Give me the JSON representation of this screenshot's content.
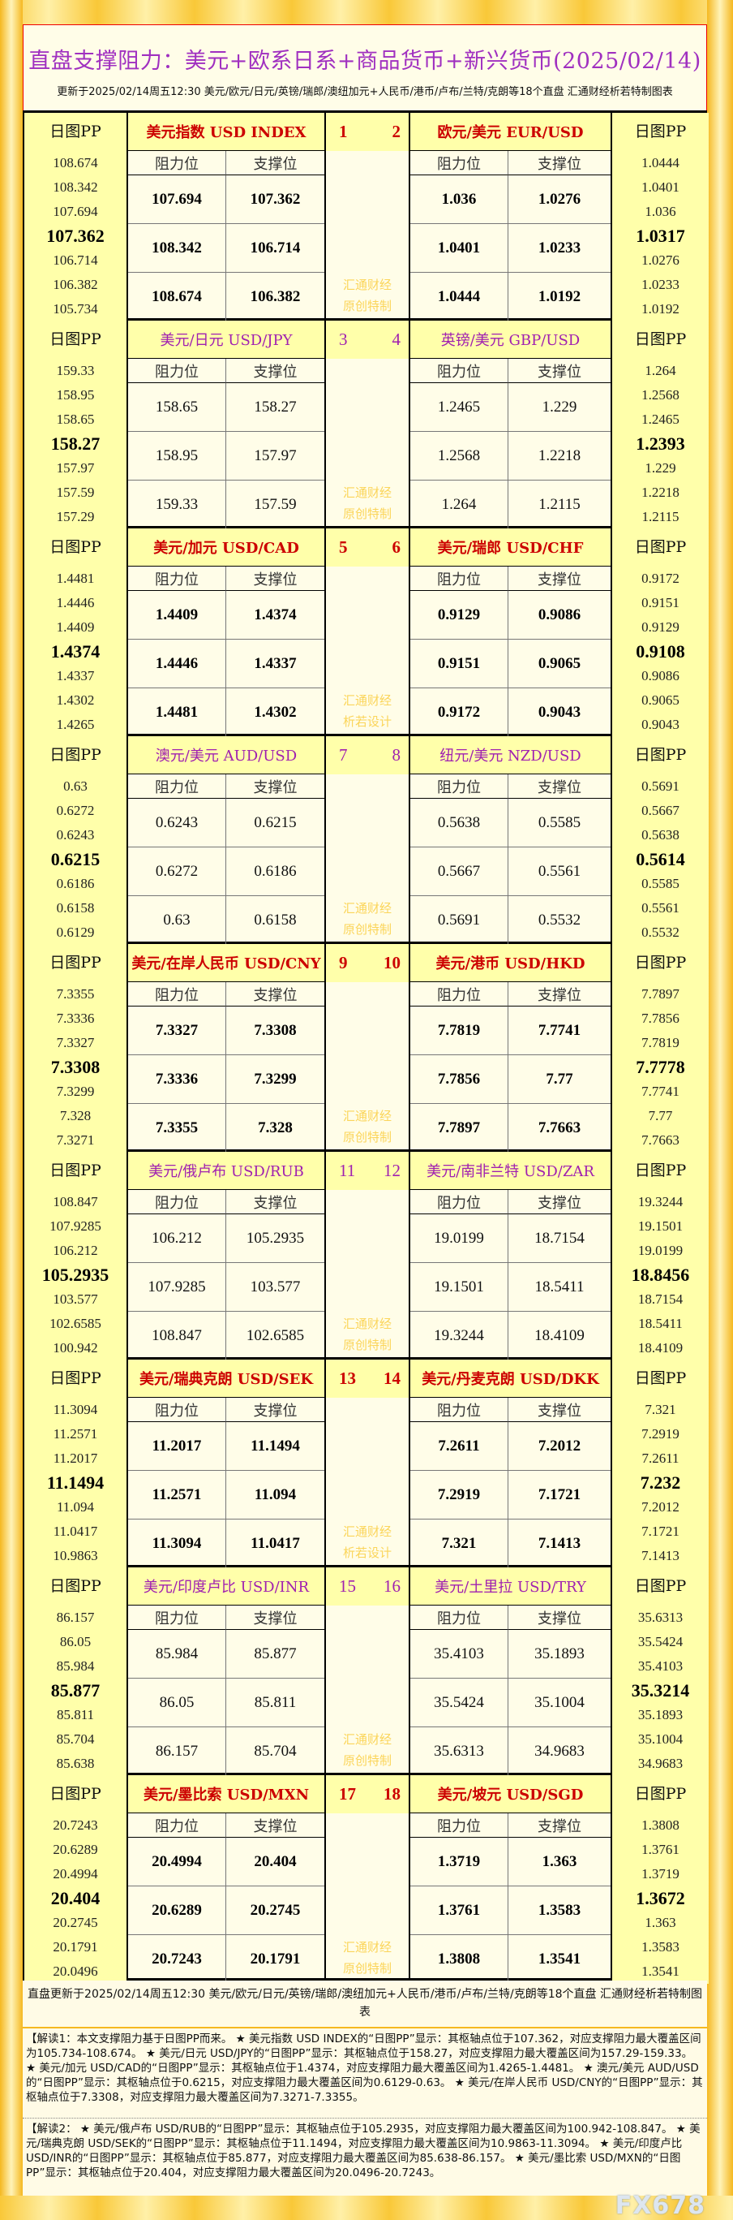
{
  "title": "直盘支撑阻力：美元+欧系日系+商品货币+新兴货币(2025/02/14)",
  "subtitle": "更新于2025/02/14周五12:30 美元/欧元/日元/英镑/瑞郎/澳纽加元+人民币/港币/卢布/兰特/克朗等18个直盘 汇通财经析若特制图表",
  "labels": {
    "pp_header": "日图PP",
    "resistance": "阻力位",
    "support": "支撑位"
  },
  "colors": {
    "red": "#cc0000",
    "purple": "#a020b0",
    "pp_bg": "#ffffaa",
    "cell_bg": "#fffde8",
    "watermark": "#fbd55a",
    "title": "#a030c0"
  },
  "blocks": [
    {
      "theme": "red",
      "nums": [
        "1",
        "2"
      ],
      "watermark": [
        "汇通财经",
        "原创特制"
      ],
      "left": {
        "name": "美元指数 USD INDEX",
        "pp": [
          "108.674",
          "108.342",
          "107.694",
          "107.362",
          "106.714",
          "106.382",
          "105.734"
        ],
        "res": [
          "107.694",
          "108.342",
          "108.674"
        ],
        "sup": [
          "107.362",
          "106.714",
          "106.382"
        ]
      },
      "right": {
        "name": "欧元/美元 EUR/USD",
        "pp": [
          "1.0444",
          "1.0401",
          "1.036",
          "1.0317",
          "1.0276",
          "1.0233",
          "1.0192"
        ],
        "res": [
          "1.036",
          "1.0401",
          "1.0444"
        ],
        "sup": [
          "1.0276",
          "1.0233",
          "1.0192"
        ]
      }
    },
    {
      "theme": "purple",
      "nums": [
        "3",
        "4"
      ],
      "watermark": [
        "汇通财经",
        "原创特制"
      ],
      "left": {
        "name": "美元/日元 USD/JPY",
        "pp": [
          "159.33",
          "158.95",
          "158.65",
          "158.27",
          "157.97",
          "157.59",
          "157.29"
        ],
        "res": [
          "158.65",
          "158.95",
          "159.33"
        ],
        "sup": [
          "158.27",
          "157.97",
          "157.59"
        ]
      },
      "right": {
        "name": "英镑/美元 GBP/USD",
        "pp": [
          "1.264",
          "1.2568",
          "1.2465",
          "1.2393",
          "1.229",
          "1.2218",
          "1.2115"
        ],
        "res": [
          "1.2465",
          "1.2568",
          "1.264"
        ],
        "sup": [
          "1.229",
          "1.2218",
          "1.2115"
        ]
      }
    },
    {
      "theme": "red",
      "nums": [
        "5",
        "6"
      ],
      "watermark": [
        "汇通财经",
        "析若设计"
      ],
      "left": {
        "name": "美元/加元 USD/CAD",
        "pp": [
          "1.4481",
          "1.4446",
          "1.4409",
          "1.4374",
          "1.4337",
          "1.4302",
          "1.4265"
        ],
        "res": [
          "1.4409",
          "1.4446",
          "1.4481"
        ],
        "sup": [
          "1.4374",
          "1.4337",
          "1.4302"
        ]
      },
      "right": {
        "name": "美元/瑞郎 USD/CHF",
        "pp": [
          "0.9172",
          "0.9151",
          "0.9129",
          "0.9108",
          "0.9086",
          "0.9065",
          "0.9043"
        ],
        "res": [
          "0.9129",
          "0.9151",
          "0.9172"
        ],
        "sup": [
          "0.9086",
          "0.9065",
          "0.9043"
        ]
      }
    },
    {
      "theme": "purple",
      "nums": [
        "7",
        "8"
      ],
      "watermark": [
        "汇通财经",
        "原创特制"
      ],
      "left": {
        "name": "澳元/美元 AUD/USD",
        "pp": [
          "0.63",
          "0.6272",
          "0.6243",
          "0.6215",
          "0.6186",
          "0.6158",
          "0.6129"
        ],
        "res": [
          "0.6243",
          "0.6272",
          "0.63"
        ],
        "sup": [
          "0.6215",
          "0.6186",
          "0.6158"
        ]
      },
      "right": {
        "name": "纽元/美元 NZD/USD",
        "pp": [
          "0.5691",
          "0.5667",
          "0.5638",
          "0.5614",
          "0.5585",
          "0.5561",
          "0.5532"
        ],
        "res": [
          "0.5638",
          "0.5667",
          "0.5691"
        ],
        "sup": [
          "0.5585",
          "0.5561",
          "0.5532"
        ]
      }
    },
    {
      "theme": "red",
      "nums": [
        "9",
        "10"
      ],
      "watermark": [
        "汇通财经",
        "原创特制"
      ],
      "left": {
        "name": "美元/在岸人民币 USD/CNY",
        "pp": [
          "7.3355",
          "7.3336",
          "7.3327",
          "7.3308",
          "7.3299",
          "7.328",
          "7.3271"
        ],
        "res": [
          "7.3327",
          "7.3336",
          "7.3355"
        ],
        "sup": [
          "7.3308",
          "7.3299",
          "7.328"
        ]
      },
      "right": {
        "name": "美元/港币 USD/HKD",
        "pp": [
          "7.7897",
          "7.7856",
          "7.7819",
          "7.7778",
          "7.7741",
          "7.77",
          "7.7663"
        ],
        "res": [
          "7.7819",
          "7.7856",
          "7.7897"
        ],
        "sup": [
          "7.7741",
          "7.77",
          "7.7663"
        ]
      }
    },
    {
      "theme": "purple",
      "nums": [
        "11",
        "12"
      ],
      "watermark": [
        "汇通财经",
        "原创特制"
      ],
      "left": {
        "name": "美元/俄卢布 USD/RUB",
        "pp": [
          "108.847",
          "107.9285",
          "106.212",
          "105.2935",
          "103.577",
          "102.6585",
          "100.942"
        ],
        "res": [
          "106.212",
          "107.9285",
          "108.847"
        ],
        "sup": [
          "105.2935",
          "103.577",
          "102.6585"
        ]
      },
      "right": {
        "name": "美元/南非兰特 USD/ZAR",
        "pp": [
          "19.3244",
          "19.1501",
          "19.0199",
          "18.8456",
          "18.7154",
          "18.5411",
          "18.4109"
        ],
        "res": [
          "19.0199",
          "19.1501",
          "19.3244"
        ],
        "sup": [
          "18.7154",
          "18.5411",
          "18.4109"
        ]
      }
    },
    {
      "theme": "red",
      "nums": [
        "13",
        "14"
      ],
      "watermark": [
        "汇通财经",
        "析若设计"
      ],
      "left": {
        "name": "美元/瑞典克朗 USD/SEK",
        "pp": [
          "11.3094",
          "11.2571",
          "11.2017",
          "11.1494",
          "11.094",
          "11.0417",
          "10.9863"
        ],
        "res": [
          "11.2017",
          "11.2571",
          "11.3094"
        ],
        "sup": [
          "11.1494",
          "11.094",
          "11.0417"
        ]
      },
      "right": {
        "name": "美元/丹麦克朗 USD/DKK",
        "pp": [
          "7.321",
          "7.2919",
          "7.2611",
          "7.232",
          "7.2012",
          "7.1721",
          "7.1413"
        ],
        "res": [
          "7.2611",
          "7.2919",
          "7.321"
        ],
        "sup": [
          "7.2012",
          "7.1721",
          "7.1413"
        ]
      }
    },
    {
      "theme": "purple",
      "nums": [
        "15",
        "16"
      ],
      "watermark": [
        "汇通财经",
        "原创特制"
      ],
      "left": {
        "name": "美元/印度卢比 USD/INR",
        "pp": [
          "86.157",
          "86.05",
          "85.984",
          "85.877",
          "85.811",
          "85.704",
          "85.638"
        ],
        "res": [
          "85.984",
          "86.05",
          "86.157"
        ],
        "sup": [
          "85.877",
          "85.811",
          "85.704"
        ]
      },
      "right": {
        "name": "美元/土里拉 USD/TRY",
        "pp": [
          "35.6313",
          "35.5424",
          "35.4103",
          "35.3214",
          "35.1893",
          "35.1004",
          "34.9683"
        ],
        "res": [
          "35.4103",
          "35.5424",
          "35.6313"
        ],
        "sup": [
          "35.1893",
          "35.1004",
          "34.9683"
        ]
      }
    },
    {
      "theme": "red",
      "nums": [
        "17",
        "18"
      ],
      "watermark": [
        "汇通财经",
        "原创特制"
      ],
      "left": {
        "name": "美元/墨比索 USD/MXN",
        "pp": [
          "20.7243",
          "20.6289",
          "20.4994",
          "20.404",
          "20.2745",
          "20.1791",
          "20.0496"
        ],
        "res": [
          "20.4994",
          "20.6289",
          "20.7243"
        ],
        "sup": [
          "20.404",
          "20.2745",
          "20.1791"
        ]
      },
      "right": {
        "name": "美元/坡元 USD/SGD",
        "pp": [
          "1.3808",
          "1.3761",
          "1.3719",
          "1.3672",
          "1.363",
          "1.3583",
          "1.3541"
        ],
        "res": [
          "1.3719",
          "1.3761",
          "1.3808"
        ],
        "sup": [
          "1.363",
          "1.3583",
          "1.3541"
        ]
      }
    }
  ],
  "footer": "直盘更新于2025/02/14周五12:30 美元/欧元/日元/英镑/瑞郎/澳纽加元+人民币/港币/卢布/兰特/克朗等18个直盘 汇通财经析若特制图表",
  "note1": "【解读1：本文支撑阻力基于日图PP而来。 ★ 美元指数 USD INDEX的“日图PP”显示：其枢轴点位于107.362，对应支撑阻力最大覆盖区间为105.734-108.674。 ★ 美元/日元 USD/JPY的“日图PP”显示：其枢轴点位于158.27，对应支撑阻力最大覆盖区间为157.29-159.33。 ★ 美元/加元 USD/CAD的“日图PP”显示：其枢轴点位于1.4374，对应支撑阻力最大覆盖区间为1.4265-1.4481。 ★ 澳元/美元 AUD/USD的“日图PP”显示：其枢轴点位于0.6215，对应支撑阻力最大覆盖区间为0.6129-0.63。 ★ 美元/在岸人民币 USD/CNY的“日图PP”显示：其枢轴点位于7.3308，对应支撑阻力最大覆盖区间为7.3271-7.3355。",
  "note2": "【解读2： ★ 美元/俄卢布 USD/RUB的“日图PP”显示：其枢轴点位于105.2935，对应支撑阻力最大覆盖区间为100.942-108.847。 ★ 美元/瑞典克朗 USD/SEK的“日图PP”显示：其枢轴点位于11.1494，对应支撑阻力最大覆盖区间为10.9863-11.3094。 ★ 美元/印度卢比 USD/INR的“日图PP”显示：其枢轴点位于85.877，对应支撑阻力最大覆盖区间为85.638-86.157。 ★ 美元/墨比索 USD/MXN的“日图PP”显示：其枢轴点位于20.404，对应支撑阻力最大覆盖区间为20.0496-20.7243。",
  "watermark_logo": "FX678"
}
